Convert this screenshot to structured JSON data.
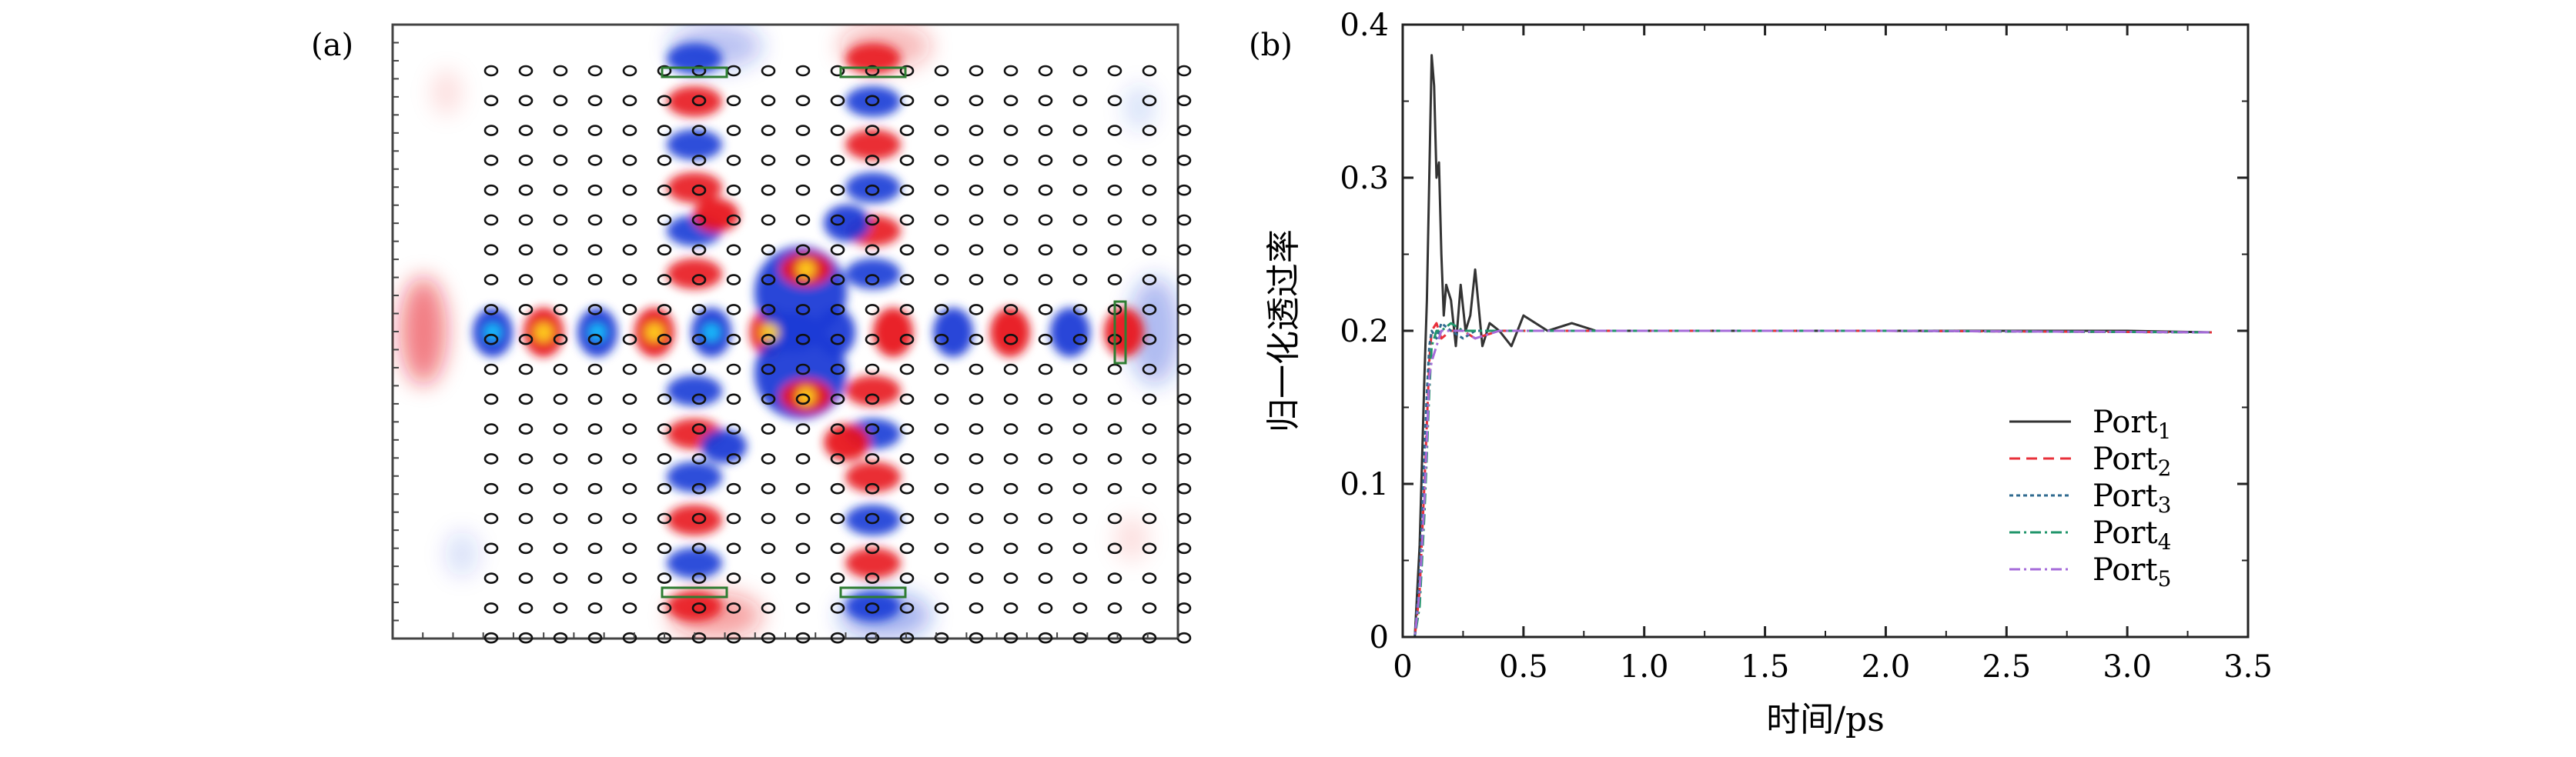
{
  "panels": {
    "a": {
      "label": "(a)",
      "grid": {
        "rows": 20,
        "cols": 21
      },
      "colors": {
        "positive": "#e8141e",
        "negative": "#1a3bd6",
        "hot": "#ffd21f",
        "rod": "#111111",
        "port": "#2e7d32"
      }
    },
    "b": {
      "label": "(b)"
    }
  },
  "chart_data": {
    "type": "line",
    "title": "",
    "xlabel": "时间/ps",
    "ylabel": "归一化透过率",
    "xlim": [
      0,
      3.5
    ],
    "ylim": [
      0,
      0.4
    ],
    "xticks": [
      "0",
      "0.5",
      "1.0",
      "1.5",
      "2.0",
      "2.5",
      "3.0",
      "3.5"
    ],
    "yticks": [
      "0",
      "0.1",
      "0.2",
      "0.3",
      "0.4"
    ],
    "grid": false,
    "legend_position": "bottom-right",
    "series": [
      {
        "name": "Port1",
        "name_base": "Port",
        "name_sub": "1",
        "color": "#333333",
        "dash": "",
        "x": [
          0,
          0.05,
          0.07,
          0.09,
          0.1,
          0.11,
          0.12,
          0.13,
          0.14,
          0.15,
          0.16,
          0.17,
          0.18,
          0.2,
          0.22,
          0.24,
          0.26,
          0.28,
          0.3,
          0.33,
          0.36,
          0.4,
          0.45,
          0.5,
          0.6,
          0.7,
          0.8,
          0.9,
          1.0,
          1.5,
          2.0,
          2.5,
          3.0,
          3.35
        ],
        "y": [
          0,
          0,
          0.06,
          0.17,
          0.22,
          0.3,
          0.38,
          0.36,
          0.3,
          0.31,
          0.25,
          0.21,
          0.23,
          0.22,
          0.19,
          0.23,
          0.2,
          0.21,
          0.24,
          0.19,
          0.205,
          0.2,
          0.19,
          0.21,
          0.2,
          0.205,
          0.2,
          0.2,
          0.2,
          0.2,
          0.2,
          0.2,
          0.2,
          0.199
        ]
      },
      {
        "name": "Port2",
        "name_base": "Port",
        "name_sub": "2",
        "color": "#e8303a",
        "dash": "14,8",
        "x": [
          0,
          0.05,
          0.07,
          0.09,
          0.1,
          0.11,
          0.12,
          0.14,
          0.16,
          0.2,
          0.25,
          0.3,
          0.4,
          0.5,
          0.7,
          1.0,
          2.0,
          3.35
        ],
        "y": [
          0,
          0,
          0.03,
          0.1,
          0.14,
          0.18,
          0.2,
          0.205,
          0.195,
          0.2,
          0.2,
          0.195,
          0.2,
          0.2,
          0.2,
          0.2,
          0.2,
          0.199
        ]
      },
      {
        "name": "Port3",
        "name_base": "Port",
        "name_sub": "3",
        "color": "#2f6a8f",
        "dash": "5,4",
        "x": [
          0,
          0.05,
          0.07,
          0.09,
          0.1,
          0.11,
          0.12,
          0.14,
          0.16,
          0.2,
          0.25,
          0.3,
          0.4,
          0.5,
          0.7,
          1.0,
          2.0,
          3.35
        ],
        "y": [
          0,
          0,
          0.04,
          0.12,
          0.16,
          0.19,
          0.2,
          0.195,
          0.205,
          0.2,
          0.195,
          0.2,
          0.2,
          0.2,
          0.2,
          0.2,
          0.2,
          0.199
        ]
      },
      {
        "name": "Port4",
        "name_base": "Port",
        "name_sub": "4",
        "color": "#20956a",
        "dash": "14,5,3,5",
        "x": [
          0,
          0.05,
          0.07,
          0.09,
          0.1,
          0.11,
          0.12,
          0.14,
          0.16,
          0.2,
          0.25,
          0.3,
          0.4,
          0.5,
          0.7,
          1.0,
          2.0,
          3.35
        ],
        "y": [
          0,
          0,
          0.02,
          0.08,
          0.12,
          0.16,
          0.19,
          0.2,
          0.2,
          0.205,
          0.2,
          0.2,
          0.2,
          0.2,
          0.2,
          0.2,
          0.2,
          0.199
        ]
      },
      {
        "name": "Port5",
        "name_base": "Port",
        "name_sub": "5",
        "color": "#a56bd9",
        "dash": "14,5,3,5",
        "x": [
          0,
          0.05,
          0.07,
          0.09,
          0.1,
          0.11,
          0.12,
          0.14,
          0.16,
          0.2,
          0.25,
          0.3,
          0.4,
          0.5,
          0.7,
          1.0,
          2.0,
          3.35
        ],
        "y": [
          0,
          0,
          0.03,
          0.09,
          0.13,
          0.17,
          0.18,
          0.19,
          0.2,
          0.2,
          0.2,
          0.195,
          0.2,
          0.2,
          0.2,
          0.2,
          0.2,
          0.199
        ]
      }
    ]
  }
}
